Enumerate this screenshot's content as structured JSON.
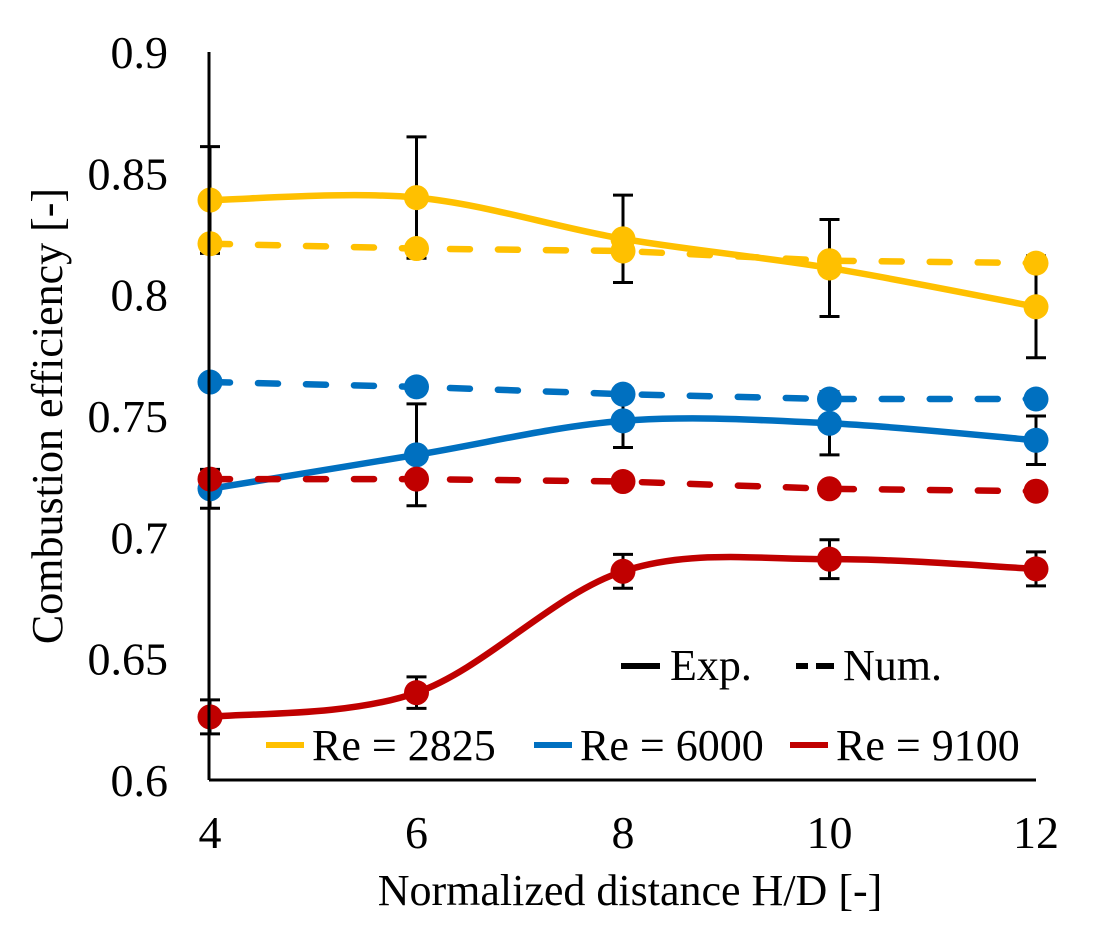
{
  "chart_data": {
    "type": "line",
    "title": "",
    "xlabel": "Normalized distance H/D [-]",
    "ylabel": "Combustion efficiency [-]",
    "x": [
      4,
      6,
      8,
      10,
      12
    ],
    "xlim": [
      4,
      12
    ],
    "ylim": [
      0.6,
      0.9
    ],
    "xticks": [
      "4",
      "6",
      "8",
      "10",
      "12"
    ],
    "yticks": [
      "0.6",
      "0.65",
      "0.7",
      "0.75",
      "0.8",
      "0.85",
      "0.9"
    ],
    "ytick_values": [
      0.6,
      0.65,
      0.7,
      0.75,
      0.8,
      0.85,
      0.9
    ],
    "grid": false,
    "legend_placement": "bottom-right",
    "style_legend": [
      {
        "label": "Exp.",
        "line": "solid"
      },
      {
        "label": "Num.",
        "line": "dashed"
      }
    ],
    "series": [
      {
        "name": "Re = 2825",
        "color": "#FFC000",
        "kind": "Exp.",
        "line": "solid",
        "values": [
          0.839,
          0.84,
          0.823,
          0.811,
          0.795
        ],
        "errors": [
          0.022,
          0.025,
          0.018,
          0.02,
          0.021
        ]
      },
      {
        "name": "Re = 2825",
        "color": "#FFC000",
        "kind": "Num.",
        "line": "dashed",
        "values": [
          0.821,
          0.819,
          0.818,
          0.814,
          0.813
        ]
      },
      {
        "name": "Re = 6000",
        "color": "#0070C0",
        "kind": "Exp.",
        "line": "solid",
        "values": [
          0.72,
          0.734,
          0.748,
          0.747,
          0.74
        ],
        "errors": [
          0.008,
          0.021,
          0.011,
          0.013,
          0.01
        ]
      },
      {
        "name": "Re = 6000",
        "color": "#0070C0",
        "kind": "Num.",
        "line": "dashed",
        "values": [
          0.764,
          0.762,
          0.759,
          0.757,
          0.757
        ]
      },
      {
        "name": "Re = 9100",
        "color": "#C00000",
        "kind": "Exp.",
        "line": "solid",
        "values": [
          0.626,
          0.636,
          0.686,
          0.691,
          0.687
        ],
        "errors": [
          0.007,
          0.0065,
          0.007,
          0.008,
          0.007
        ]
      },
      {
        "name": "Re = 9100",
        "color": "#C00000",
        "kind": "Num.",
        "line": "dashed",
        "values": [
          0.724,
          0.724,
          0.723,
          0.72,
          0.719
        ]
      }
    ],
    "color_legend": [
      {
        "label": "Re = 2825",
        "color": "#FFC000"
      },
      {
        "label": "Re = 6000",
        "color": "#0070C0"
      },
      {
        "label": "Re = 9100",
        "color": "#C00000"
      }
    ]
  }
}
